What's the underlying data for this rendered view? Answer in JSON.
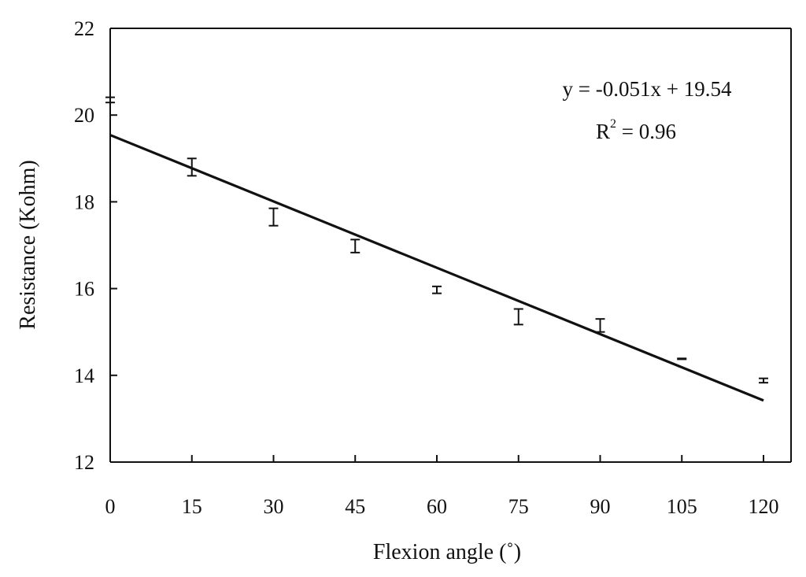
{
  "chart_data": {
    "type": "scatter",
    "xlabel": "Flexion angle (˚)",
    "ylabel": "Resistance (Kohm)",
    "xlim": [
      0,
      120
    ],
    "ylim": [
      12,
      22
    ],
    "x_ticks": [
      0,
      15,
      30,
      45,
      60,
      75,
      90,
      105,
      120
    ],
    "y_ticks": [
      12,
      14,
      16,
      18,
      20,
      22
    ],
    "grid": false,
    "series": [
      {
        "x": [
          0,
          15,
          30,
          45,
          60,
          75,
          90,
          105,
          120
        ],
        "y": [
          20.35,
          18.8,
          17.65,
          16.98,
          15.97,
          15.35,
          15.15,
          14.38,
          13.88
        ],
        "error": [
          0.06,
          0.2,
          0.2,
          0.15,
          0.08,
          0.18,
          0.15,
          0.01,
          0.05
        ]
      }
    ],
    "trendline": {
      "slope": -0.051,
      "intercept": 19.54,
      "x_range": [
        0,
        120
      ]
    },
    "annotations": {
      "equation": "y = -0.051x + 19.54",
      "r2_prefix": "R",
      "r2_exponent": "2",
      "r2_value": " = 0.96"
    }
  }
}
